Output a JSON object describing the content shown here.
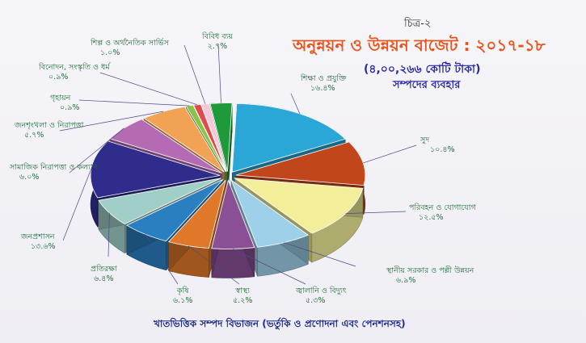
{
  "figure_label": "চিত্র-২",
  "title": "অনুন্নয়ন ও উন্নয়ন বাজেট : ২০১৭-১৮",
  "subtitle": "(৪,০০,২৬৬ কোটি টাকা)",
  "subtitle2": "সম্পদের ব্যবহার",
  "footer": "খাতভিত্তিক সম্পদ বিভাজন (ভর্তুকি ও প্রণোদনা এবং পেনশনসহ)",
  "chart_data": {
    "type": "pie",
    "title": "অনুন্নয়ন ও উন্নয়ন বাজেট : ২০১৭-১৮",
    "unit": "%",
    "slices": [
      {
        "label": "শিক্ষা ও প্রযুক্তি",
        "value_text": "১৬.৪%",
        "value": 16.4,
        "color": "#2aa7d6"
      },
      {
        "label": "সুদ",
        "value_text": "১০.৪%",
        "value": 10.4,
        "color": "#c2461c"
      },
      {
        "label": "পরিবহন ও যোগাযোগ",
        "value_text": "১২.৫%",
        "value": 12.5,
        "color": "#f2ee9a"
      },
      {
        "label": "স্থানীয় সরকার ও পল্লী উন্নয়ন",
        "value_text": "৬.৯%",
        "value": 6.9,
        "color": "#9ed0ea"
      },
      {
        "label": "জ্বালানি ও বিদ্যুৎ",
        "value_text": "৫.৩%",
        "value": 5.3,
        "color": "#8a4f94"
      },
      {
        "label": "স্বাস্থ্য",
        "value_text": "৫.২%",
        "value": 5.2,
        "color": "#e0782a"
      },
      {
        "label": "কৃষি",
        "value_text": "৬.১%",
        "value": 6.1,
        "color": "#2a7fc0"
      },
      {
        "label": "প্রতিরক্ষা",
        "value_text": "৬.৪%",
        "value": 6.4,
        "color": "#9fcfc6"
      },
      {
        "label": "জনপ্রশাসন",
        "value_text": "১৩.৬%",
        "value": 13.6,
        "color": "#2f2c8c"
      },
      {
        "label": "সামাজিক নিরাপত্তা ও কল্যাণ",
        "value_text": "৬.০%",
        "value": 6.0,
        "color": "#b56ab4"
      },
      {
        "label": "জনশৃংখলা ও নিরাপত্তা",
        "value_text": "৫.৭%",
        "value": 5.7,
        "color": "#f2a255"
      },
      {
        "label": "গৃহায়ন",
        "value_text": "০.৯%",
        "value": 0.9,
        "color": "#8ac24a"
      },
      {
        "label": "বিনোদন, সংস্কৃতি ও ধর্ম",
        "value_text": "০.৯%",
        "value": 0.9,
        "color": "#e04a4a"
      },
      {
        "label": "শিল্প ও অর্থনৈতিক সার্ভিস",
        "value_text": "১.০%",
        "value": 1.0,
        "color": "#f4c8d8"
      },
      {
        "label": "বিবিধ ব্যয়",
        "value_text": "২.৭%",
        "value": 2.7,
        "color": "#1e9a3a"
      }
    ]
  }
}
